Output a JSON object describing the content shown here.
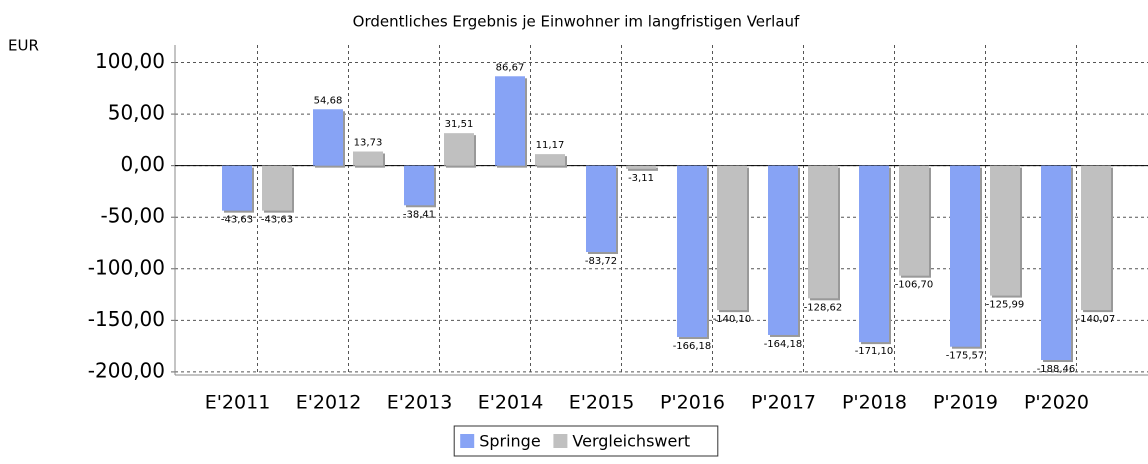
{
  "chart_data": {
    "type": "bar",
    "title": "Ordentliches Ergebnis je Einwohner im langfristigen Verlauf",
    "y_axis_label": "EUR",
    "categories": [
      "E'2011",
      "E'2012",
      "E'2013",
      "E'2014",
      "E'2015",
      "P'2016",
      "P'2017",
      "P'2018",
      "P'2019",
      "P'2020"
    ],
    "series": [
      {
        "name": "Springe",
        "color": "#87a3f5",
        "values": [
          -43.63,
          54.68,
          -38.41,
          86.67,
          -83.72,
          -166.18,
          -164.18,
          -171.1,
          -175.57,
          -188.46
        ],
        "value_labels": [
          "-43,63",
          "54,68",
          "-38,41",
          "86,67",
          "-83,72",
          "-166,18",
          "-164,18",
          "-171,10",
          "-175,57",
          "-188,46"
        ]
      },
      {
        "name": "Vergleichswert",
        "color": "#c0c0c0",
        "values": [
          -43.63,
          13.73,
          31.51,
          11.17,
          -3.11,
          -140.1,
          -128.62,
          -106.7,
          -125.99,
          -140.07
        ],
        "value_labels": [
          "-43,63",
          "13,73",
          "31,51",
          "11,17",
          "-3,11",
          "-140,10",
          "-128,62",
          "-106,70",
          "-125,99",
          "-140,07"
        ]
      }
    ],
    "ylim": [
      -203,
      117
    ],
    "yticks": [
      {
        "value": 100,
        "label": "100,00"
      },
      {
        "value": 50,
        "label": "50,00"
      },
      {
        "value": 0,
        "label": "0,00"
      },
      {
        "value": -50,
        "label": "-50,00"
      },
      {
        "value": -100,
        "label": "-100,00"
      },
      {
        "value": -150,
        "label": "-150,00"
      },
      {
        "value": -200,
        "label": "-200,00"
      }
    ],
    "grid": true,
    "legend": "bottom"
  }
}
